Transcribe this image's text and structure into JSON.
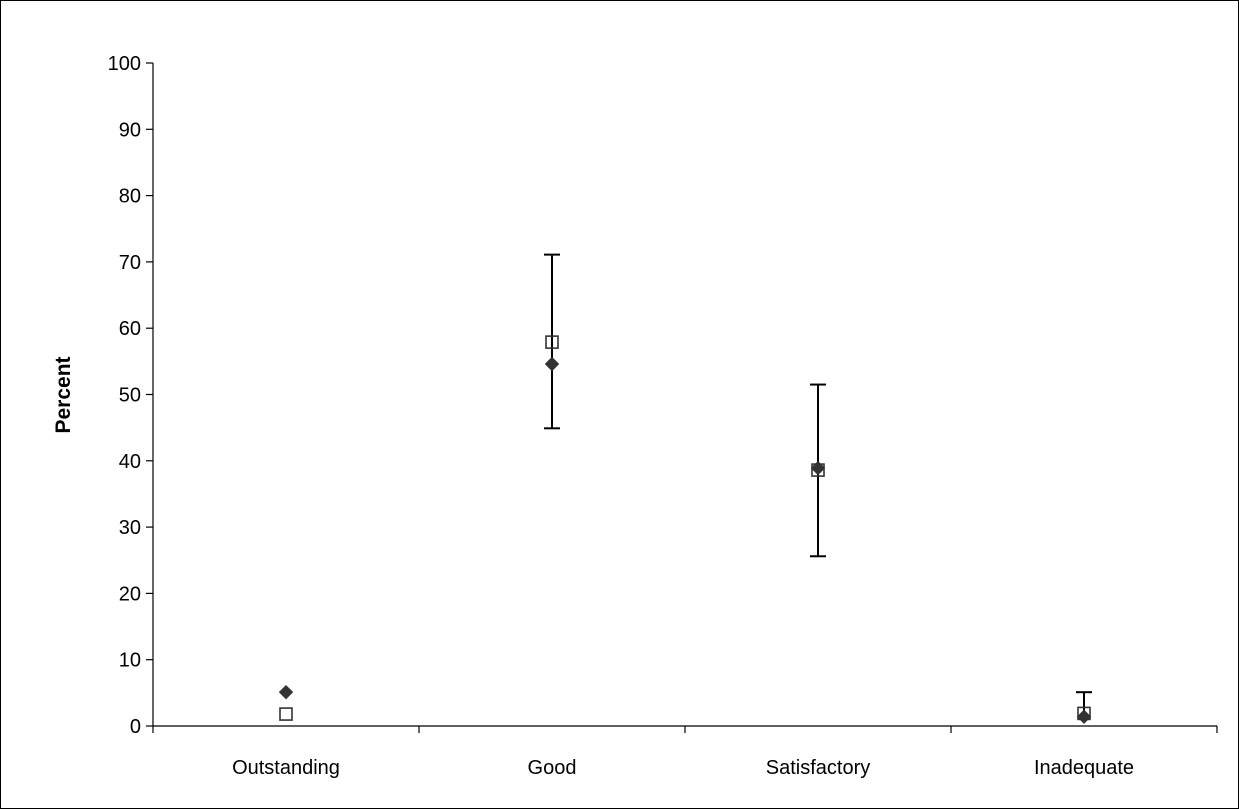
{
  "chart_data": {
    "type": "scatter",
    "title": "",
    "xlabel": "",
    "ylabel": "Percent",
    "categories": [
      "Outstanding",
      "Good",
      "Satisfactory",
      "Inadequate"
    ],
    "ylim": [
      0,
      100
    ],
    "yticks": [
      0,
      10,
      20,
      30,
      40,
      50,
      60,
      70,
      80,
      90,
      100
    ],
    "grid": false,
    "legend": "none",
    "series": [
      {
        "marker": "filled-diamond",
        "color": "#333333",
        "values": [
          5.1,
          54.6,
          38.9,
          1.4
        ]
      },
      {
        "marker": "open-square",
        "color": "#333333",
        "values": [
          1.8,
          57.9,
          38.6,
          1.9
        ],
        "error_low": [
          null,
          44.9,
          25.6,
          null
        ],
        "error_high": [
          null,
          71.1,
          51.5,
          5.1
        ]
      }
    ]
  }
}
